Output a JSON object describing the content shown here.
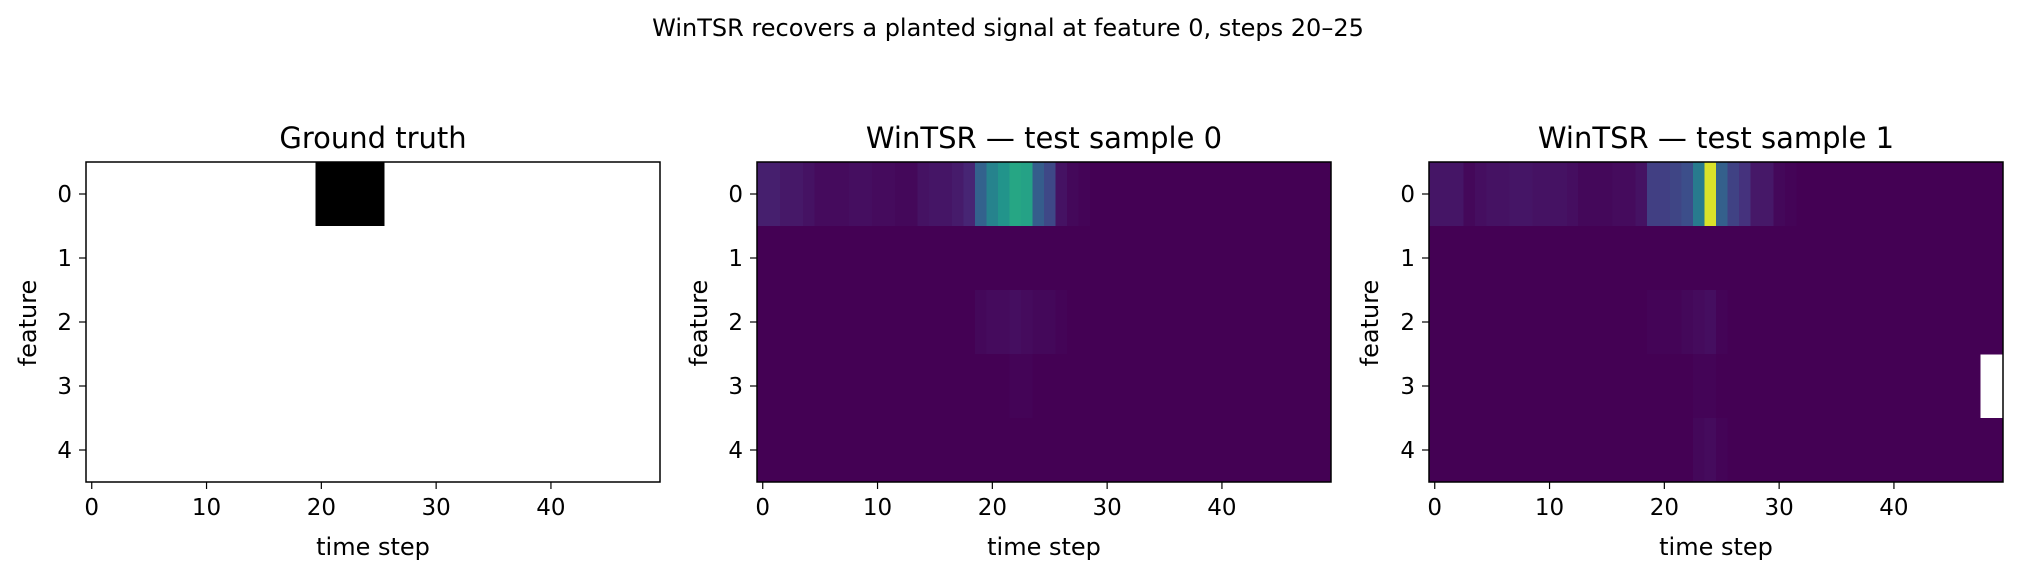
{
  "figure": {
    "suptitle": "WinTSR recovers a planted signal at feature 0, steps 20–25"
  },
  "chart_data": [
    {
      "type": "heatmap",
      "title": "Ground truth",
      "xlabel": "time step",
      "ylabel": "feature",
      "colormap": "gray_r",
      "xlim": [
        -0.5,
        49.5
      ],
      "ylim": [
        4.5,
        -0.5
      ],
      "xticks": [
        0,
        10,
        20,
        30,
        40
      ],
      "yticks": [
        0,
        1,
        2,
        3,
        4
      ],
      "n_steps": 50,
      "n_features": 5,
      "rows": [
        {
          "feature": 0,
          "values": [
            0,
            0,
            0,
            0,
            0,
            0,
            0,
            0,
            0,
            0,
            0,
            0,
            0,
            0,
            0,
            0,
            0,
            0,
            0,
            0,
            1,
            1,
            1,
            1,
            1,
            1,
            0,
            0,
            0,
            0,
            0,
            0,
            0,
            0,
            0,
            0,
            0,
            0,
            0,
            0,
            0,
            0,
            0,
            0,
            0,
            0,
            0,
            0,
            0,
            0
          ]
        },
        {
          "feature": 1,
          "values": [
            0,
            0,
            0,
            0,
            0,
            0,
            0,
            0,
            0,
            0,
            0,
            0,
            0,
            0,
            0,
            0,
            0,
            0,
            0,
            0,
            0,
            0,
            0,
            0,
            0,
            0,
            0,
            0,
            0,
            0,
            0,
            0,
            0,
            0,
            0,
            0,
            0,
            0,
            0,
            0,
            0,
            0,
            0,
            0,
            0,
            0,
            0,
            0,
            0,
            0
          ]
        },
        {
          "feature": 2,
          "values": [
            0,
            0,
            0,
            0,
            0,
            0,
            0,
            0,
            0,
            0,
            0,
            0,
            0,
            0,
            0,
            0,
            0,
            0,
            0,
            0,
            0,
            0,
            0,
            0,
            0,
            0,
            0,
            0,
            0,
            0,
            0,
            0,
            0,
            0,
            0,
            0,
            0,
            0,
            0,
            0,
            0,
            0,
            0,
            0,
            0,
            0,
            0,
            0,
            0,
            0
          ]
        },
        {
          "feature": 3,
          "values": [
            0,
            0,
            0,
            0,
            0,
            0,
            0,
            0,
            0,
            0,
            0,
            0,
            0,
            0,
            0,
            0,
            0,
            0,
            0,
            0,
            0,
            0,
            0,
            0,
            0,
            0,
            0,
            0,
            0,
            0,
            0,
            0,
            0,
            0,
            0,
            0,
            0,
            0,
            0,
            0,
            0,
            0,
            0,
            0,
            0,
            0,
            0,
            0,
            0,
            0
          ]
        },
        {
          "feature": 4,
          "values": [
            0,
            0,
            0,
            0,
            0,
            0,
            0,
            0,
            0,
            0,
            0,
            0,
            0,
            0,
            0,
            0,
            0,
            0,
            0,
            0,
            0,
            0,
            0,
            0,
            0,
            0,
            0,
            0,
            0,
            0,
            0,
            0,
            0,
            0,
            0,
            0,
            0,
            0,
            0,
            0,
            0,
            0,
            0,
            0,
            0,
            0,
            0,
            0,
            0,
            0
          ]
        }
      ]
    },
    {
      "type": "heatmap",
      "title": "WinTSR — test sample 0",
      "xlabel": "time step",
      "ylabel": "feature",
      "colormap": "viridis",
      "xlim": [
        -0.5,
        49.5
      ],
      "ylim": [
        4.5,
        -0.5
      ],
      "xticks": [
        0,
        10,
        20,
        30,
        40
      ],
      "yticks": [
        0,
        1,
        2,
        3,
        4
      ],
      "n_steps": 50,
      "n_features": 5,
      "rows": [
        {
          "feature": 0,
          "values": [
            0.09,
            0.09,
            0.07,
            0.07,
            0.05,
            0.03,
            0.03,
            0.03,
            0.04,
            0.04,
            0.03,
            0.03,
            0.02,
            0.02,
            0.05,
            0.06,
            0.06,
            0.08,
            0.11,
            0.32,
            0.45,
            0.52,
            0.6,
            0.58,
            0.3,
            0.22,
            0.05,
            0.02,
            0.01,
            0,
            0,
            0,
            0,
            0,
            0,
            0,
            0,
            0,
            0,
            0,
            0,
            0,
            0,
            0,
            0,
            0,
            0,
            0,
            0,
            0
          ]
        },
        {
          "feature": 1,
          "values": [
            0,
            0,
            0,
            0,
            0,
            0,
            0,
            0,
            0,
            0,
            0,
            0,
            0,
            0,
            0,
            0,
            0,
            0,
            0,
            0,
            0,
            0,
            0,
            0,
            0,
            0,
            0,
            0,
            0,
            0,
            0,
            0,
            0,
            0,
            0,
            0,
            0,
            0,
            0,
            0,
            0,
            0,
            0,
            0,
            0,
            0,
            0,
            0,
            0,
            0
          ]
        },
        {
          "feature": 2,
          "values": [
            0,
            0,
            0,
            0,
            0,
            0,
            0,
            0,
            0,
            0,
            0,
            0,
            0,
            0,
            0,
            0,
            0,
            0,
            0,
            0.02,
            0.03,
            0.03,
            0.04,
            0.03,
            0.02,
            0.02,
            0.01,
            0,
            0,
            0,
            0,
            0,
            0,
            0,
            0,
            0,
            0,
            0,
            0,
            0,
            0,
            0,
            0,
            0,
            0,
            0,
            0,
            0,
            0,
            0
          ]
        },
        {
          "feature": 3,
          "values": [
            0,
            0,
            0,
            0,
            0,
            0,
            0,
            0,
            0,
            0,
            0,
            0,
            0,
            0,
            0,
            0,
            0,
            0,
            0,
            0,
            0,
            0,
            0.01,
            0.01,
            0,
            0,
            0,
            0,
            0,
            0,
            0,
            0,
            0,
            0,
            0,
            0,
            0,
            0,
            0,
            0,
            0,
            0,
            0,
            0,
            0,
            0,
            0,
            0,
            0,
            0
          ]
        },
        {
          "feature": 4,
          "values": [
            0,
            0,
            0,
            0,
            0,
            0,
            0,
            0,
            0,
            0,
            0,
            0,
            0,
            0,
            0,
            0,
            0,
            0,
            0,
            0,
            0,
            0,
            0,
            0,
            0,
            0,
            0,
            0,
            0,
            0,
            0,
            0,
            0,
            0,
            0,
            0,
            0,
            0,
            0,
            0,
            0,
            0,
            0,
            0,
            0,
            0,
            0,
            0,
            0,
            0
          ]
        }
      ]
    },
    {
      "type": "heatmap",
      "title": "WinTSR — test sample 1",
      "xlabel": "time step",
      "ylabel": "feature",
      "colormap": "viridis",
      "xlim": [
        -0.5,
        49.5
      ],
      "ylim": [
        4.5,
        -0.5
      ],
      "xticks": [
        0,
        10,
        20,
        30,
        40
      ],
      "yticks": [
        0,
        1,
        2,
        3,
        4
      ],
      "n_steps": 50,
      "n_features": 5,
      "rows": [
        {
          "feature": 0,
          "values": [
            0.06,
            0.06,
            0.06,
            0.02,
            0.04,
            0.05,
            0.05,
            0.06,
            0.06,
            0.05,
            0.05,
            0.05,
            0.04,
            0.02,
            0.02,
            0.02,
            0.03,
            0.03,
            0.05,
            0.19,
            0.19,
            0.21,
            0.24,
            0.42,
            0.95,
            0.31,
            0.2,
            0.15,
            0.07,
            0.07,
            0.02,
            0.01,
            0,
            0,
            0,
            0,
            0,
            0,
            0,
            0,
            0,
            0,
            0,
            0,
            0,
            0,
            0,
            0,
            0,
            0
          ]
        },
        {
          "feature": 1,
          "values": [
            0,
            0,
            0,
            0,
            0,
            0,
            0,
            0,
            0,
            0,
            0,
            0,
            0,
            0,
            0,
            0,
            0,
            0,
            0,
            0,
            0,
            0,
            0,
            0,
            0,
            0,
            0,
            0,
            0,
            0,
            0,
            0,
            0,
            0,
            0,
            0,
            0,
            0,
            0,
            0,
            0,
            0,
            0,
            0,
            0,
            0,
            0,
            0,
            0,
            0
          ]
        },
        {
          "feature": 2,
          "values": [
            0,
            0,
            0,
            0,
            0,
            0,
            0,
            0,
            0,
            0,
            0,
            0,
            0,
            0,
            0,
            0,
            0,
            0,
            0,
            0.01,
            0.01,
            0.01,
            0.02,
            0.03,
            0.04,
            0.01,
            0,
            0,
            0,
            0,
            0,
            0,
            0,
            0,
            0,
            0,
            0,
            0,
            0,
            0,
            0,
            0,
            0,
            0,
            0,
            0,
            0,
            0,
            0,
            0
          ]
        },
        {
          "feature": 3,
          "values": [
            0,
            0,
            0,
            0,
            0,
            0,
            0,
            0,
            0,
            0,
            0,
            0,
            0,
            0,
            0,
            0,
            0,
            0,
            0,
            0,
            0,
            0,
            0,
            0.01,
            0.01,
            0,
            0,
            0,
            0,
            0,
            0,
            0,
            0,
            0,
            0,
            0,
            0,
            0,
            0,
            0,
            0,
            0,
            0,
            0,
            0,
            0,
            0,
            0
          ]
        },
        {
          "feature": 4,
          "values": [
            0,
            0,
            0,
            0,
            0,
            0,
            0,
            0,
            0,
            0,
            0,
            0,
            0,
            0,
            0,
            0,
            0,
            0,
            0,
            0,
            0,
            0,
            0,
            0.02,
            0.03,
            0.01,
            0,
            0,
            0,
            0,
            0,
            0,
            0,
            0,
            0,
            0,
            0,
            0,
            0,
            0,
            0,
            0,
            0,
            0,
            0,
            0,
            0,
            0,
            0,
            0
          ]
        }
      ]
    }
  ]
}
